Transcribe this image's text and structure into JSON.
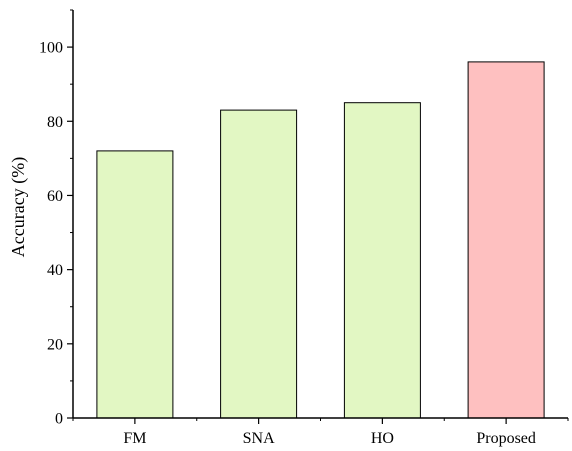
{
  "chart_data": {
    "type": "bar",
    "title": "",
    "xlabel": "",
    "ylabel": "Accuracy (%)",
    "categories": [
      "FM",
      "SNA",
      "HO",
      "Proposed"
    ],
    "values": [
      72,
      83,
      85,
      96
    ],
    "ylim": [
      0,
      110
    ],
    "yticks": [
      0,
      20,
      40,
      60,
      80,
      100
    ],
    "y_minor_tick_step": 10,
    "grid": false,
    "legend": "none",
    "colors": {
      "baseline_fill": "#E2F7C3",
      "proposed_fill": "#FEC0C0",
      "bar_stroke": "#000000",
      "axis": "#000000"
    },
    "highlight_index": 3
  }
}
